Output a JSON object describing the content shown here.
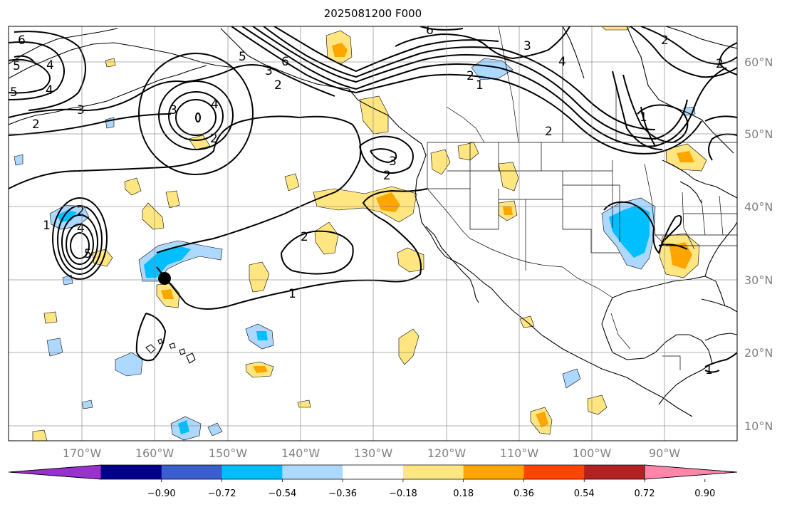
{
  "title": "2025081200 F000",
  "lon_ticks": [
    "170°W",
    "160°W",
    "150°W",
    "140°W",
    "130°W",
    "120°W",
    "110°W",
    "100°W",
    "90°W"
  ],
  "lat_ticks": [
    "60°N",
    "50°N",
    "40°N",
    "30°N",
    "20°N",
    "10°N"
  ],
  "colorbar": {
    "labels": [
      "−0.90",
      "−0.72",
      "−0.54",
      "−0.36",
      "−0.18",
      "0.18",
      "0.36",
      "0.54",
      "0.72",
      "0.90"
    ],
    "colors": [
      "#9932cc",
      "#00008b",
      "#3a5fcd",
      "#00bfff",
      "#add8ff",
      "#ffffff",
      "#ffe680",
      "#ffa500",
      "#ff4500",
      "#b22222",
      "#ff85aa"
    ]
  },
  "contour_labels": [
    "6",
    "5",
    "4",
    "5",
    "4",
    "3",
    "2",
    "3",
    "4",
    "2",
    "6",
    "5",
    "3",
    "2",
    "4",
    "3",
    "2",
    "2",
    "3",
    "2",
    "2",
    "1",
    "4",
    "5",
    "2",
    "1",
    "1",
    "1",
    "6",
    "2",
    "1",
    "2"
  ],
  "colors": {
    "frame": "#000000",
    "grid": "#808080",
    "yellow": "#ffe680",
    "orange": "#ffa500",
    "sky": "#00bfff",
    "lightblue": "#add8ff"
  }
}
